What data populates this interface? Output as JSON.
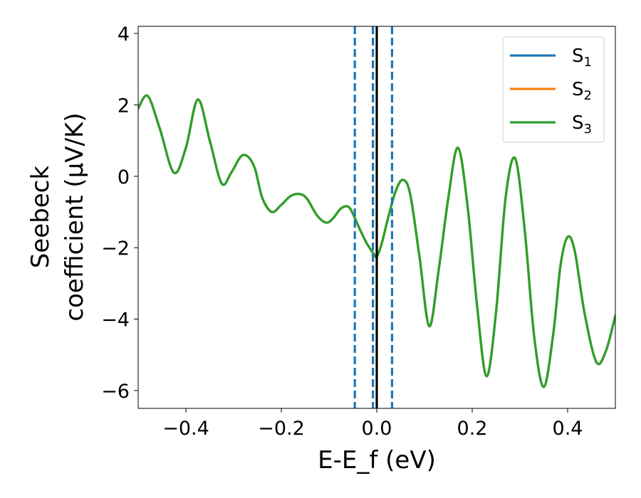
{
  "chart_data": {
    "type": "line",
    "title": "",
    "xlabel": "E-E_f (eV)",
    "ylabel_line1": "Seebeck",
    "ylabel_line2": "coefficient  (μV/K)",
    "xlim": [
      -0.5,
      0.5
    ],
    "ylim": [
      -6.5,
      4.2
    ],
    "xticks": [
      -0.4,
      -0.2,
      0.0,
      0.2,
      0.4
    ],
    "xtick_labels": [
      "−0.4",
      "−0.2",
      "0.0",
      "0.2",
      "0.4"
    ],
    "yticks": [
      4,
      2,
      0,
      -2,
      -4,
      -6
    ],
    "ytick_labels": [
      "4",
      "2",
      "0",
      "−2",
      "−4",
      "−6"
    ],
    "grid": false,
    "legend_position": "top-right",
    "vlines": [
      {
        "x": 0.0,
        "color": "#000000",
        "style": "solid"
      },
      {
        "x": -0.046,
        "color": "#1f77b4",
        "style": "dashed"
      },
      {
        "x": -0.008,
        "color": "#1f77b4",
        "style": "dashed"
      },
      {
        "x": 0.032,
        "color": "#1f77b4",
        "style": "dashed"
      }
    ],
    "series": [
      {
        "name": "S1",
        "name_base": "S",
        "name_sub": "1",
        "color": "#1f77b4",
        "x": [
          -0.5,
          -0.48,
          -0.455,
          -0.425,
          -0.4,
          -0.375,
          -0.35,
          -0.325,
          -0.305,
          -0.285,
          -0.27,
          -0.255,
          -0.24,
          -0.22,
          -0.2,
          -0.18,
          -0.16,
          -0.145,
          -0.125,
          -0.105,
          -0.09,
          -0.075,
          -0.06,
          -0.05,
          -0.035,
          -0.02,
          -0.005,
          0.0,
          0.01,
          0.025,
          0.04,
          0.055,
          0.07,
          0.09,
          0.11,
          0.13,
          0.15,
          0.17,
          0.19,
          0.21,
          0.23,
          0.25,
          0.27,
          0.29,
          0.31,
          0.33,
          0.35,
          0.37,
          0.385,
          0.4,
          0.415,
          0.435,
          0.46,
          0.48,
          0.5
        ],
        "y": [
          1.9,
          2.25,
          1.35,
          0.1,
          0.8,
          2.15,
          1.0,
          -0.2,
          0.1,
          0.55,
          0.55,
          0.2,
          -0.6,
          -1.0,
          -0.8,
          -0.55,
          -0.5,
          -0.65,
          -1.1,
          -1.3,
          -1.15,
          -0.9,
          -0.85,
          -1.05,
          -1.5,
          -1.9,
          -2.2,
          -2.25,
          -1.9,
          -1.1,
          -0.4,
          -0.1,
          -0.5,
          -2.3,
          -4.2,
          -2.6,
          -0.6,
          0.8,
          -0.8,
          -3.6,
          -5.6,
          -3.8,
          -0.6,
          0.5,
          -1.5,
          -4.5,
          -5.9,
          -4.4,
          -2.5,
          -1.7,
          -2.1,
          -3.8,
          -5.2,
          -4.9,
          -3.9
        ]
      },
      {
        "name": "S2",
        "name_base": "S",
        "name_sub": "2",
        "color": "#ff7f0e",
        "x": [
          -0.5,
          -0.48,
          -0.455,
          -0.425,
          -0.4,
          -0.375,
          -0.35,
          -0.325,
          -0.305,
          -0.285,
          -0.27,
          -0.255,
          -0.24,
          -0.22,
          -0.2,
          -0.18,
          -0.16,
          -0.145,
          -0.125,
          -0.105,
          -0.09,
          -0.075,
          -0.06,
          -0.05,
          -0.035,
          -0.02,
          -0.005,
          0.0,
          0.01,
          0.025,
          0.04,
          0.055,
          0.07,
          0.09,
          0.11,
          0.13,
          0.15,
          0.17,
          0.19,
          0.21,
          0.23,
          0.25,
          0.27,
          0.29,
          0.31,
          0.33,
          0.35,
          0.37,
          0.385,
          0.4,
          0.415,
          0.435,
          0.46,
          0.48,
          0.5
        ],
        "y": [
          1.9,
          2.25,
          1.35,
          0.1,
          0.8,
          2.15,
          1.0,
          -0.2,
          0.1,
          0.55,
          0.55,
          0.2,
          -0.6,
          -1.0,
          -0.8,
          -0.55,
          -0.5,
          -0.65,
          -1.1,
          -1.3,
          -1.15,
          -0.9,
          -0.85,
          -1.05,
          -1.5,
          -1.9,
          -2.2,
          -2.25,
          -1.9,
          -1.1,
          -0.4,
          -0.1,
          -0.5,
          -2.3,
          -4.2,
          -2.6,
          -0.6,
          0.8,
          -0.8,
          -3.6,
          -5.6,
          -3.8,
          -0.6,
          0.5,
          -1.5,
          -4.5,
          -5.9,
          -4.4,
          -2.5,
          -1.7,
          -2.1,
          -3.8,
          -5.2,
          -4.9,
          -3.9
        ]
      },
      {
        "name": "S3",
        "name_base": "S",
        "name_sub": "3",
        "color": "#2ca02c",
        "x": [
          -0.5,
          -0.48,
          -0.455,
          -0.425,
          -0.4,
          -0.375,
          -0.35,
          -0.325,
          -0.305,
          -0.285,
          -0.27,
          -0.255,
          -0.24,
          -0.22,
          -0.2,
          -0.18,
          -0.16,
          -0.145,
          -0.125,
          -0.105,
          -0.09,
          -0.075,
          -0.06,
          -0.05,
          -0.035,
          -0.02,
          -0.005,
          0.0,
          0.01,
          0.025,
          0.04,
          0.055,
          0.07,
          0.09,
          0.11,
          0.13,
          0.15,
          0.17,
          0.19,
          0.21,
          0.23,
          0.25,
          0.27,
          0.29,
          0.31,
          0.33,
          0.35,
          0.37,
          0.385,
          0.4,
          0.415,
          0.435,
          0.46,
          0.48,
          0.5
        ],
        "y": [
          1.9,
          2.25,
          1.35,
          0.1,
          0.8,
          2.15,
          1.0,
          -0.2,
          0.1,
          0.55,
          0.55,
          0.2,
          -0.6,
          -1.0,
          -0.8,
          -0.55,
          -0.5,
          -0.65,
          -1.1,
          -1.3,
          -1.15,
          -0.9,
          -0.85,
          -1.05,
          -1.5,
          -1.9,
          -2.2,
          -2.25,
          -1.9,
          -1.1,
          -0.4,
          -0.1,
          -0.5,
          -2.3,
          -4.2,
          -2.6,
          -0.6,
          0.8,
          -0.8,
          -3.6,
          -5.6,
          -3.8,
          -0.6,
          0.5,
          -1.5,
          -4.5,
          -5.9,
          -4.4,
          -2.5,
          -1.7,
          -2.1,
          -3.8,
          -5.2,
          -4.9,
          -3.9
        ]
      }
    ]
  }
}
